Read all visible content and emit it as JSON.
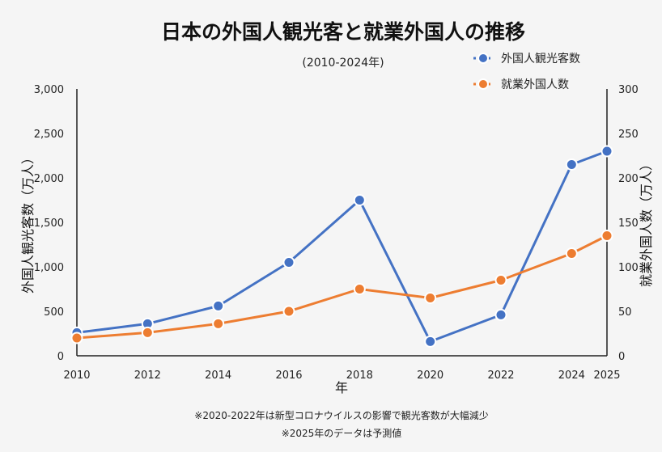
{
  "chart_data": {
    "type": "line",
    "title": "日本の外国人観光客と就業外国人の推移",
    "subtitle": "(2010-2024年)",
    "xlabel": "年",
    "ylabel_left": "外国人観光客数（万人）",
    "ylabel_right": "就業外国人数（万人）",
    "x": [
      2010,
      2012,
      2014,
      2016,
      2018,
      2020,
      2022,
      2024,
      2025
    ],
    "x_ticks": [
      "2010",
      "2012",
      "2014",
      "2016",
      "2018",
      "2020",
      "2022",
      "2024",
      "2025"
    ],
    "ylim_left": [
      0,
      3000
    ],
    "y_ticks_left": [
      "0",
      "500",
      "1,000",
      "1,500",
      "2,000",
      "2,500",
      "3,000"
    ],
    "ylim_right": [
      0,
      300
    ],
    "y_ticks_right": [
      "0",
      "50",
      "100",
      "150",
      "200",
      "250",
      "300"
    ],
    "grid": false,
    "legend_position": "top-right",
    "series": [
      {
        "name": "外国人観光客数",
        "axis": "left",
        "color": "#4472c4",
        "line_style": "solid",
        "values": [
          260,
          360,
          560,
          1050,
          1750,
          160,
          460,
          2150,
          2300
        ]
      },
      {
        "name": "就業外国人数",
        "axis": "right",
        "color": "#ed7d31",
        "line_style": "solid",
        "values": [
          20,
          26,
          36,
          50,
          75,
          65,
          85,
          115,
          135
        ]
      }
    ],
    "notes": [
      "※2020-2022年は新型コロナウイルスの影響で観光客数が大幅減少",
      "※2025年のデータは予測値"
    ]
  }
}
